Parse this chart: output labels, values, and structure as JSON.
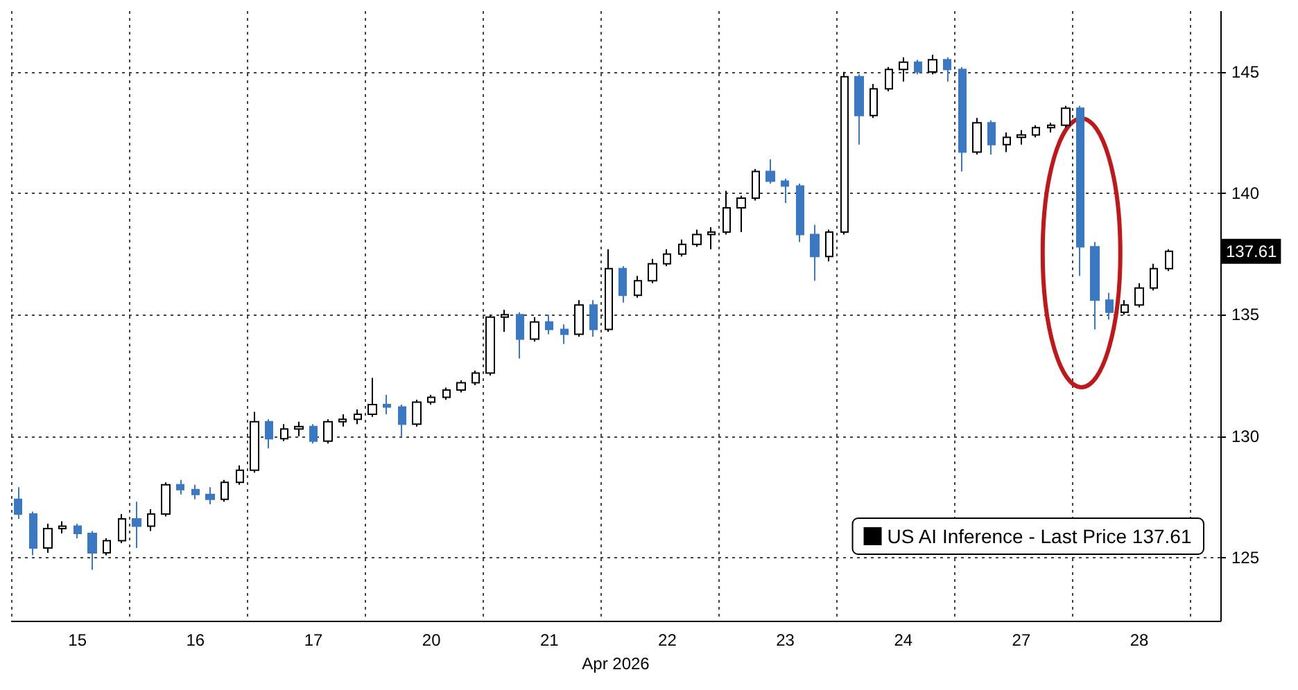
{
  "chart_data": {
    "type": "candlestick",
    "xlabel": "Apr 2026",
    "categories": [
      null,
      null,
      null,
      null,
      "15",
      null,
      null,
      null,
      null,
      null,
      null,
      null,
      "16",
      null,
      null,
      null,
      null,
      null,
      null,
      null,
      "17",
      null,
      null,
      null,
      null,
      null,
      null,
      null,
      "20",
      null,
      null,
      null,
      null,
      null,
      null,
      null,
      "21",
      null,
      null,
      null,
      null,
      null,
      null,
      null,
      "22",
      null,
      null,
      null,
      null,
      null,
      null,
      null,
      "23",
      null,
      null,
      null,
      null,
      null,
      null,
      null,
      "24",
      null,
      null,
      null,
      null,
      null,
      null,
      null,
      "27",
      null,
      null,
      null,
      null,
      null,
      null,
      null,
      "28",
      null,
      null,
      null,
      null,
      null
    ],
    "series": [
      {
        "name": "US AI Inference - Last Price 137.61",
        "color": "#000000",
        "colors": [
          "#3a78c2",
          "#3a78c2",
          "#000000",
          "#000000",
          "#3a78c2",
          "#3a78c2",
          "#000000",
          "#000000",
          "#3a78c2",
          "#000000",
          "#000000",
          "#3a78c2",
          "#3a78c2",
          "#3a78c2",
          "#000000",
          "#000000",
          "#000000",
          "#3a78c2",
          "#000000",
          "#000000",
          "#3a78c2",
          "#000000",
          "#000000",
          "#000000",
          "#000000",
          "#3a78c2",
          "#3a78c2",
          "#000000",
          "#000000",
          "#000000",
          "#000000",
          "#000000",
          "#000000",
          "#000000",
          "#3a78c2",
          "#000000",
          "#3a78c2",
          "#3a78c2",
          "#000000",
          "#3a78c2",
          "#000000",
          "#3a78c2",
          "#000000",
          "#000000",
          "#000000",
          "#000000",
          "#000000",
          "#000000",
          "#000000",
          "#000000",
          "#000000",
          "#3a78c2",
          "#3a78c2",
          "#3a78c2",
          "#3a78c2",
          "#000000",
          "#000000",
          "#3a78c2",
          "#000000",
          "#000000",
          "#000000",
          "#3a78c2",
          "#000000",
          "#3a78c2",
          "#3a78c2",
          "#000000",
          "#3a78c2",
          "#000000",
          "#000000",
          "#000000",
          "#000000",
          "#000000",
          "#3a78c2",
          "#3a78c2",
          "#3a78c2",
          "#000000",
          "#000000",
          "#000000",
          "#000000",
          null,
          null,
          null
        ],
        "ohlc": [
          [
            127.4,
            127.9,
            126.6,
            126.8
          ],
          [
            126.8,
            126.9,
            125.1,
            125.4
          ],
          [
            125.4,
            126.4,
            125.2,
            126.2
          ],
          [
            126.2,
            126.5,
            126.0,
            126.3
          ],
          [
            126.3,
            126.4,
            125.8,
            126.0
          ],
          [
            126.0,
            126.1,
            124.5,
            125.2
          ],
          [
            125.2,
            125.8,
            125.1,
            125.7
          ],
          [
            125.7,
            126.8,
            125.6,
            126.6
          ],
          [
            126.6,
            127.3,
            125.4,
            126.3
          ],
          [
            126.3,
            127.0,
            126.1,
            126.8
          ],
          [
            126.8,
            128.1,
            126.7,
            128.0
          ],
          [
            128.0,
            128.2,
            127.6,
            127.8
          ],
          [
            127.8,
            128.0,
            127.4,
            127.6
          ],
          [
            127.6,
            127.9,
            127.2,
            127.4
          ],
          [
            127.4,
            128.2,
            127.3,
            128.1
          ],
          [
            128.1,
            128.8,
            128.0,
            128.6
          ],
          [
            128.6,
            131.0,
            128.5,
            130.6
          ],
          [
            130.6,
            130.7,
            129.5,
            129.9
          ],
          [
            129.9,
            130.5,
            129.8,
            130.3
          ],
          [
            130.3,
            130.6,
            130.0,
            130.4
          ],
          [
            130.4,
            130.5,
            129.7,
            129.8
          ],
          [
            129.8,
            130.7,
            129.7,
            130.6
          ],
          [
            130.6,
            130.9,
            130.4,
            130.7
          ],
          [
            130.7,
            131.1,
            130.5,
            130.9
          ],
          [
            130.9,
            132.4,
            130.8,
            131.3
          ],
          [
            131.3,
            131.7,
            130.9,
            131.2
          ],
          [
            131.2,
            131.3,
            130.0,
            130.5
          ],
          [
            130.5,
            131.5,
            130.4,
            131.4
          ],
          [
            131.4,
            131.7,
            131.3,
            131.6
          ],
          [
            131.6,
            132.0,
            131.5,
            131.9
          ],
          [
            131.9,
            132.3,
            131.8,
            132.2
          ],
          [
            132.2,
            132.7,
            132.1,
            132.6
          ],
          [
            132.6,
            135.0,
            132.5,
            134.9
          ],
          [
            134.9,
            135.2,
            134.3,
            135.0
          ],
          [
            135.0,
            135.1,
            133.2,
            134.0
          ],
          [
            134.0,
            134.9,
            133.9,
            134.7
          ],
          [
            134.7,
            135.0,
            134.2,
            134.4
          ],
          [
            134.4,
            134.6,
            133.8,
            134.2
          ],
          [
            134.2,
            135.6,
            134.1,
            135.4
          ],
          [
            135.4,
            135.6,
            134.1,
            134.4
          ],
          [
            134.4,
            137.7,
            134.3,
            136.9
          ],
          [
            136.9,
            137.0,
            135.5,
            135.8
          ],
          [
            135.8,
            136.6,
            135.7,
            136.4
          ],
          [
            136.4,
            137.3,
            136.3,
            137.1
          ],
          [
            137.1,
            137.7,
            137.0,
            137.5
          ],
          [
            137.5,
            138.1,
            137.4,
            137.9
          ],
          [
            137.9,
            138.5,
            137.8,
            138.3
          ],
          [
            138.3,
            138.6,
            137.7,
            138.4
          ],
          [
            138.4,
            140.1,
            138.3,
            139.4
          ],
          [
            139.4,
            139.9,
            138.4,
            139.8
          ],
          [
            139.8,
            141.0,
            139.7,
            140.9
          ],
          [
            140.9,
            141.4,
            140.4,
            140.5
          ],
          [
            140.5,
            140.6,
            139.6,
            140.3
          ],
          [
            140.3,
            140.4,
            138.0,
            138.3
          ],
          [
            138.3,
            138.7,
            136.4,
            137.4
          ],
          [
            137.4,
            138.5,
            137.2,
            138.4
          ],
          [
            138.4,
            145.0,
            138.3,
            144.8
          ],
          [
            144.8,
            144.9,
            142.0,
            143.2
          ],
          [
            143.2,
            144.5,
            143.1,
            144.3
          ],
          [
            144.3,
            145.2,
            144.2,
            145.1
          ],
          [
            145.1,
            145.6,
            144.6,
            145.4
          ],
          [
            145.4,
            145.5,
            144.9,
            145.0
          ],
          [
            145.0,
            145.7,
            144.9,
            145.5
          ],
          [
            145.5,
            145.6,
            144.6,
            145.1
          ],
          [
            145.1,
            145.2,
            140.9,
            141.7
          ],
          [
            141.7,
            143.1,
            141.6,
            142.9
          ],
          [
            142.9,
            143.0,
            141.6,
            142.0
          ],
          [
            142.0,
            142.5,
            141.7,
            142.3
          ],
          [
            142.3,
            142.6,
            142.0,
            142.4
          ],
          [
            142.4,
            142.8,
            142.3,
            142.7
          ],
          [
            142.7,
            142.9,
            142.5,
            142.8
          ],
          [
            142.8,
            143.6,
            142.7,
            143.5
          ],
          [
            143.5,
            143.6,
            136.6,
            137.8
          ],
          [
            137.8,
            138.0,
            134.4,
            135.6
          ],
          [
            135.6,
            135.9,
            134.8,
            135.1
          ],
          [
            135.1,
            135.6,
            135.0,
            135.4
          ],
          [
            135.4,
            136.3,
            135.3,
            136.1
          ],
          [
            136.1,
            137.1,
            136.0,
            136.9
          ],
          [
            136.9,
            137.7,
            136.8,
            137.61
          ],
          null,
          null,
          null
        ]
      }
    ],
    "ylim": [
      122.4,
      147.5
    ],
    "yticks": [
      125,
      130,
      135,
      140,
      145
    ],
    "grid": true,
    "legend": "bottom right",
    "annotations": [
      {
        "text": "137.61",
        "y": 137.61
      }
    ]
  }
}
